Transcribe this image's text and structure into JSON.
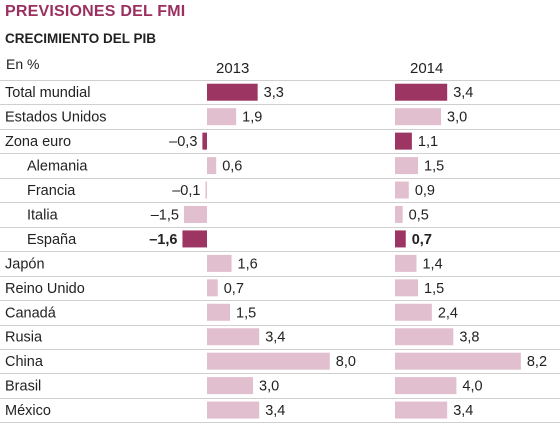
{
  "title": "PREVISIONES DEL FMI",
  "subtitle": "CRECIMIENTO DEL PIB",
  "unit": "En %",
  "colors": {
    "highlight": "#9c3562",
    "normal": "#e2bfcf",
    "rule": "#cfcfcf",
    "title": "#9b3060"
  },
  "chart_data": {
    "type": "bar",
    "orientation": "horizontal",
    "title": "PREVISIONES DEL FMI",
    "subtitle": "CRECIMIENTO DEL PIB",
    "unit": "En %",
    "categories": [
      "Total mundial",
      "Estados Unidos",
      "Zona euro",
      "Alemania",
      "Francia",
      "Italia",
      "España",
      "Japón",
      "Reino Unido",
      "Canadá",
      "Rusia",
      "China",
      "Brasil",
      "México"
    ],
    "indented": [
      false,
      false,
      false,
      true,
      true,
      true,
      true,
      false,
      false,
      false,
      false,
      false,
      false,
      false
    ],
    "highlighted": [
      true,
      false,
      true,
      false,
      false,
      false,
      true,
      false,
      false,
      false,
      false,
      false,
      false,
      false
    ],
    "bold_labels": [
      false,
      false,
      false,
      false,
      false,
      false,
      true,
      false,
      false,
      false,
      false,
      false,
      false,
      false
    ],
    "series": [
      {
        "name": "2013",
        "values": [
          3.3,
          1.9,
          -0.3,
          0.6,
          -0.1,
          -1.5,
          -1.6,
          1.6,
          0.7,
          1.5,
          3.4,
          8.0,
          3.0,
          3.4
        ],
        "labels": [
          "3,3",
          "1,9",
          "–0,3",
          "0,6",
          "–0,1",
          "–1,5",
          "–1,6",
          "1,6",
          "0,7",
          "1,5",
          "3,4",
          "8,0",
          "3,0",
          "3,4"
        ]
      },
      {
        "name": "2014",
        "values": [
          3.4,
          3.0,
          1.1,
          1.5,
          0.9,
          0.5,
          0.7,
          1.4,
          1.5,
          2.4,
          3.8,
          8.2,
          4.0,
          3.4
        ],
        "labels": [
          "3,4",
          "3,0",
          "1,1",
          "1,5",
          "0,9",
          "0,5",
          "0,7",
          "1,4",
          "1,5",
          "2,4",
          "3,8",
          "8,2",
          "4,0",
          "3,4"
        ]
      }
    ]
  }
}
